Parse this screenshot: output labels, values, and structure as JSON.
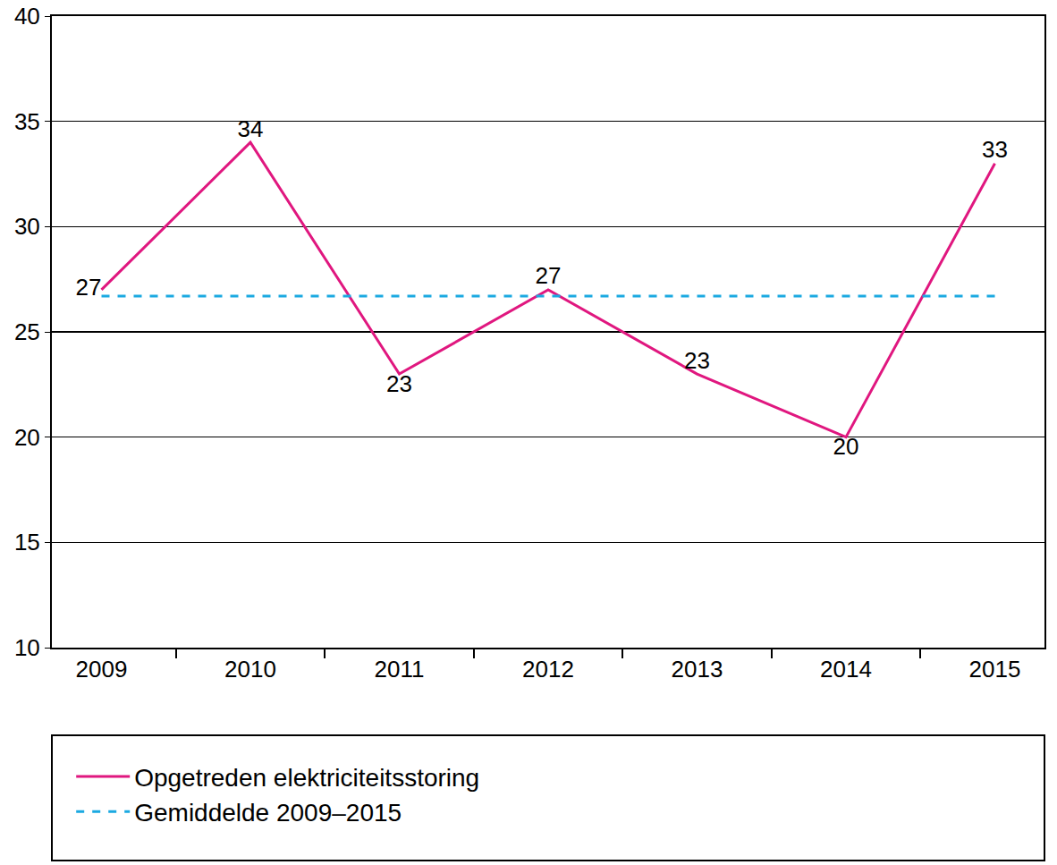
{
  "chart_data": {
    "type": "line",
    "categories": [
      "2009",
      "2010",
      "2011",
      "2012",
      "2013",
      "2014",
      "2015"
    ],
    "series": [
      {
        "name": "Opgetreden elektriciteitsstoring",
        "color": "#e0177f",
        "values": [
          27,
          34,
          23,
          27,
          23,
          20,
          33
        ],
        "data_labels": true,
        "line_style": "solid"
      },
      {
        "name": "Gemiddelde 2009–2015",
        "color": "#1ba9e1",
        "values": [
          26.7,
          26.7,
          26.7,
          26.7,
          26.7,
          26.7,
          26.7
        ],
        "line_style": "dashed"
      }
    ],
    "ylim": [
      10,
      40
    ],
    "yticks": [
      10,
      15,
      20,
      25,
      30,
      35,
      40
    ],
    "grid": true,
    "legend": "bottom"
  }
}
